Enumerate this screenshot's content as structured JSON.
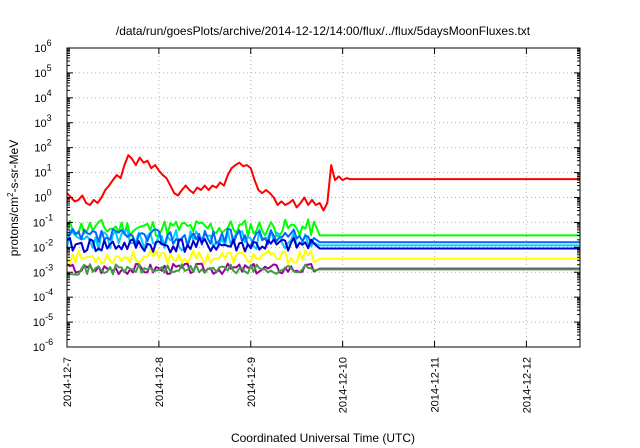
{
  "chart_data": {
    "type": "line",
    "title": "/data/run/goesPlots/archive/2014-12-12/14:00/flux/../flux/5daysMoonFluxes.txt",
    "xlabel": "Coordinated Universal Time (UTC)",
    "ylabel": "protons/cm2-s-sr-MeV",
    "ylabel_parts": [
      "protons/cm",
      "2",
      "-s-sr-MeV"
    ],
    "y_scale": "log",
    "ylim": [
      1e-06,
      1000000.0
    ],
    "xlim": [
      "2014-12-07T00:00",
      "2014-12-12T14:00"
    ],
    "x_ticks": [
      "2014-12-7",
      "2014-12-8",
      "2014-12-9",
      "2014-12-10",
      "2014-12-11",
      "2014-12-12"
    ],
    "y_ticks": [
      {
        "base": "10",
        "exp": "-6"
      },
      {
        "base": "10",
        "exp": "-5"
      },
      {
        "base": "10",
        "exp": "-4"
      },
      {
        "base": "10",
        "exp": "-3"
      },
      {
        "base": "10",
        "exp": "-2"
      },
      {
        "base": "10",
        "exp": "-1"
      },
      {
        "base": "10",
        "exp": "0"
      },
      {
        "base": "10",
        "exp": "1"
      },
      {
        "base": "10",
        "exp": "2"
      },
      {
        "base": "10",
        "exp": "3"
      },
      {
        "base": "10",
        "exp": "4"
      },
      {
        "base": "10",
        "exp": "5"
      },
      {
        "base": "10",
        "exp": "6"
      }
    ],
    "grid": true,
    "series": [
      {
        "color": "#ff0000",
        "points": [
          [
            "2014-12-07T00:00",
            1.5
          ],
          [
            "2014-12-07T02:00",
            0.7
          ],
          [
            "2014-12-07T03:00",
            0.8
          ],
          [
            "2014-12-07T04:00",
            1.2
          ],
          [
            "2014-12-07T05:00",
            0.6
          ],
          [
            "2014-12-07T06:00",
            0.5
          ],
          [
            "2014-12-07T07:00",
            0.8
          ],
          [
            "2014-12-07T08:00",
            0.6
          ],
          [
            "2014-12-07T09:00",
            1.0
          ],
          [
            "2014-12-07T10:00",
            2.0
          ],
          [
            "2014-12-07T11:00",
            3.0
          ],
          [
            "2014-12-07T12:00",
            5.0
          ],
          [
            "2014-12-07T13:00",
            8.0
          ],
          [
            "2014-12-07T14:00",
            6.0
          ],
          [
            "2014-12-07T15:00",
            20
          ],
          [
            "2014-12-07T16:00",
            50
          ],
          [
            "2014-12-07T17:00",
            35
          ],
          [
            "2014-12-07T18:00",
            20
          ],
          [
            "2014-12-07T19:00",
            40
          ],
          [
            "2014-12-07T20:00",
            25
          ],
          [
            "2014-12-07T21:00",
            30
          ],
          [
            "2014-12-07T22:00",
            15
          ],
          [
            "2014-12-07T23:00",
            20
          ],
          [
            "2014-12-08T00:00",
            12
          ],
          [
            "2014-12-08T01:00",
            8
          ],
          [
            "2014-12-08T02:00",
            6
          ],
          [
            "2014-12-08T03:00",
            3
          ],
          [
            "2014-12-08T04:00",
            1.5
          ],
          [
            "2014-12-08T05:00",
            1.2
          ],
          [
            "2014-12-08T06:00",
            2.0
          ],
          [
            "2014-12-08T07:00",
            3.0
          ],
          [
            "2014-12-08T08:00",
            2.0
          ],
          [
            "2014-12-08T09:00",
            1.5
          ],
          [
            "2014-12-08T10:00",
            2.5
          ],
          [
            "2014-12-08T11:00",
            2.0
          ],
          [
            "2014-12-08T12:00",
            3.0
          ],
          [
            "2014-12-08T13:00",
            2.0
          ],
          [
            "2014-12-08T14:00",
            3.0
          ],
          [
            "2014-12-08T15:00",
            2.5
          ],
          [
            "2014-12-08T16:00",
            4.0
          ],
          [
            "2014-12-08T17:00",
            3.0
          ],
          [
            "2014-12-08T18:00",
            8.0
          ],
          [
            "2014-12-08T19:00",
            15
          ],
          [
            "2014-12-08T20:00",
            20
          ],
          [
            "2014-12-08T21:00",
            25
          ],
          [
            "2014-12-08T22:00",
            18
          ],
          [
            "2014-12-08T23:00",
            20
          ],
          [
            "2014-12-09T00:00",
            15
          ],
          [
            "2014-12-09T01:00",
            5.0
          ],
          [
            "2014-12-09T02:00",
            2.0
          ],
          [
            "2014-12-09T03:00",
            1.5
          ],
          [
            "2014-12-09T04:00",
            2.0
          ],
          [
            "2014-12-09T05:00",
            1.5
          ],
          [
            "2014-12-09T06:00",
            1.0
          ],
          [
            "2014-12-09T07:00",
            0.5
          ],
          [
            "2014-12-09T08:00",
            0.7
          ],
          [
            "2014-12-09T09:00",
            0.5
          ],
          [
            "2014-12-09T10:00",
            0.6
          ],
          [
            "2014-12-09T11:00",
            0.8
          ],
          [
            "2014-12-09T12:00",
            0.4
          ],
          [
            "2014-12-09T13:00",
            0.6
          ],
          [
            "2014-12-09T14:00",
            1.0
          ],
          [
            "2014-12-09T15:00",
            0.5
          ],
          [
            "2014-12-09T16:00",
            0.8
          ],
          [
            "2014-12-09T17:00",
            0.5
          ],
          [
            "2014-12-09T18:00",
            0.6
          ],
          [
            "2014-12-09T19:00",
            0.3
          ],
          [
            "2014-12-09T20:00",
            0.6
          ],
          [
            "2014-12-09T21:00",
            20
          ],
          [
            "2014-12-09T22:00",
            5.0
          ],
          [
            "2014-12-09T23:00",
            7.0
          ],
          [
            "2014-12-10T00:00",
            5.0
          ],
          [
            "2014-12-10T01:00",
            6.0
          ],
          [
            "2014-12-10T02:00",
            5.5
          ],
          [
            "2014-12-12T14:00",
            5.5
          ]
        ]
      },
      {
        "color": "#00ff00",
        "base": 0.06,
        "amp": 0.1,
        "end": 0.03,
        "seed": 11
      },
      {
        "color": "#00ccff",
        "base": 0.02,
        "amp": 0.14,
        "end": 0.012,
        "seed": 23
      },
      {
        "color": "#0066ff",
        "base": 0.025,
        "amp": 0.1,
        "end": 0.016,
        "seed": 37
      },
      {
        "color": "#0000cc",
        "base": 0.012,
        "amp": 0.08,
        "end": 0.009,
        "seed": 41
      },
      {
        "color": "#ffff00",
        "base": 0.004,
        "amp": 0.06,
        "end": 0.0035,
        "seed": 53
      },
      {
        "color": "#990099",
        "base": 0.0014,
        "amp": 0.035,
        "end": 0.0014,
        "seed": 67
      },
      {
        "color": "#449944",
        "base": 0.0013,
        "amp": 0.03,
        "end": 0.0013,
        "seed": 71
      }
    ]
  }
}
